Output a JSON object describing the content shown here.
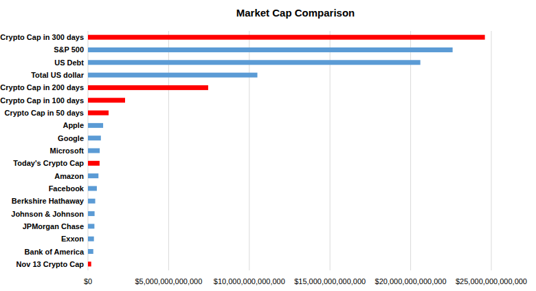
{
  "chart_data": {
    "type": "bar",
    "title": "Market Cap Comparison",
    "orientation": "horizontal",
    "categories": [
      "Crypto Cap in 300 days",
      "S&P 500",
      "US Debt",
      "Total US dollar",
      "Crypto Cap in 200 days",
      "Crypto Cap in 100 days",
      "Crypto Cap in 50 days",
      "Apple",
      "Google",
      "Microsoft",
      "Today's Crypto Cap",
      "Amazon",
      "Facebook",
      "Berkshire Hathaway",
      "Johnson & Johnson",
      "JPMorgan Chase",
      "Exxon",
      "Bank of America",
      "Nov 13 Crypto Cap"
    ],
    "values": [
      24600000000000,
      22600000000000,
      20600000000000,
      10500000000000,
      7450000000000,
      2300000000000,
      1280000000000,
      940000000000,
      800000000000,
      730000000000,
      720000000000,
      650000000000,
      550000000000,
      450000000000,
      410000000000,
      400000000000,
      370000000000,
      330000000000,
      200000000000
    ],
    "colors": [
      "#ff0000",
      "#5b9bd5",
      "#5b9bd5",
      "#5b9bd5",
      "#ff0000",
      "#ff0000",
      "#ff0000",
      "#5b9bd5",
      "#5b9bd5",
      "#5b9bd5",
      "#ff0000",
      "#5b9bd5",
      "#5b9bd5",
      "#5b9bd5",
      "#5b9bd5",
      "#5b9bd5",
      "#5b9bd5",
      "#5b9bd5",
      "#ff0000"
    ],
    "xlim": [
      0,
      25000000000000
    ],
    "xticks": [
      {
        "value": 0,
        "label": "$0"
      },
      {
        "value": 5000000000000,
        "label": "$5,000,000,000,000"
      },
      {
        "value": 10000000000000,
        "label": "$10,000,000,000,000"
      },
      {
        "value": 15000000000000,
        "label": "$15,000,000,000,000"
      },
      {
        "value": 20000000000000,
        "label": "$20,000,000,000,000"
      },
      {
        "value": 25000000000000,
        "label": "$25,000,000,000,000"
      }
    ],
    "grid": true
  }
}
